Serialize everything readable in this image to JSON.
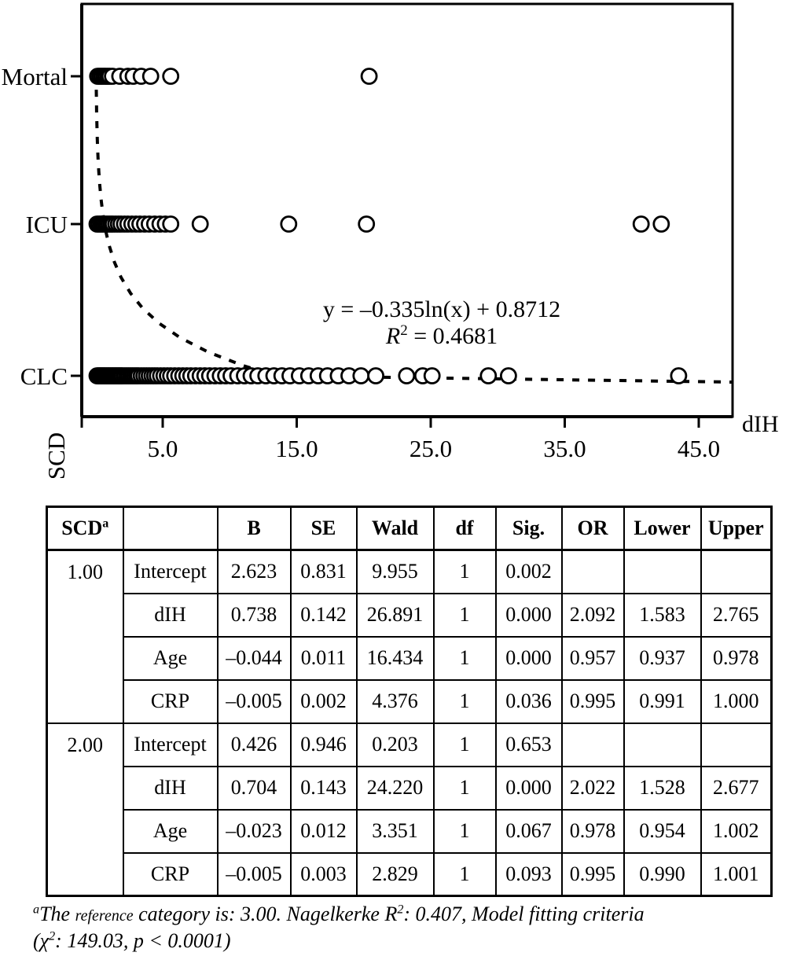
{
  "chart_data": {
    "type": "scatter",
    "title": "",
    "xlabel": "dIH",
    "yaxis_corner_label": "SCD",
    "categories": [
      "Mortal",
      "ICU",
      "CLC"
    ],
    "x_ticks": [
      5.0,
      15.0,
      25.0,
      35.0,
      45.0
    ],
    "x_tick_labels": [
      "5.0",
      "15.0",
      "25.0",
      "35.0",
      "45.0"
    ],
    "xlim": [
      -1.0,
      47.5
    ],
    "grid": false,
    "legend": "none",
    "marker": "open-circle",
    "marker_color": "#000000",
    "series": [
      {
        "name": "Mortal",
        "values": [
          0.15,
          0.3,
          0.45,
          0.6,
          0.75,
          0.9,
          1.05,
          1.25,
          1.8,
          2.4,
          2.8,
          3.4,
          4.1,
          5.6,
          20.4
        ]
      },
      {
        "name": "ICU",
        "values": [
          0.1,
          0.25,
          0.4,
          0.55,
          0.7,
          0.85,
          1.0,
          1.15,
          1.3,
          1.5,
          1.7,
          1.9,
          2.15,
          2.4,
          2.7,
          3.0,
          3.3,
          3.65,
          4.0,
          4.4,
          4.8,
          5.2,
          5.6,
          7.8,
          14.4,
          20.2,
          40.7,
          42.2
        ]
      },
      {
        "name": "CLC",
        "values": [
          0.1,
          0.2,
          0.3,
          0.4,
          0.5,
          0.6,
          0.7,
          0.8,
          0.9,
          1.0,
          1.1,
          1.2,
          1.3,
          1.4,
          1.5,
          1.6,
          1.7,
          1.8,
          1.9,
          2.0,
          2.15,
          2.3,
          2.45,
          2.6,
          2.75,
          2.9,
          3.05,
          3.2,
          3.4,
          3.6,
          3.8,
          4.0,
          4.2,
          4.4,
          4.6,
          4.85,
          5.1,
          5.35,
          5.6,
          5.9,
          6.2,
          6.5,
          6.8,
          7.1,
          7.45,
          7.8,
          8.15,
          8.5,
          8.9,
          9.3,
          9.7,
          10.1,
          10.6,
          11.1,
          11.6,
          12.1,
          12.7,
          13.3,
          13.9,
          14.5,
          15.2,
          15.9,
          16.6,
          17.3,
          18.1,
          18.9,
          19.8,
          20.9,
          23.2,
          24.4,
          25.1,
          29.3,
          30.8,
          43.5
        ]
      }
    ],
    "trendline": {
      "style": "dashed",
      "a": -0.335,
      "b": 0.8712,
      "equation_text": "y = –0.335ln(x) + 0.8712",
      "r2_prefix": "R",
      "r2_sup": "2",
      "r2_rest": " = 0.4681"
    }
  },
  "table": {
    "headers": [
      {
        "text": "SCD",
        "sup": "a"
      },
      {
        "text": ""
      },
      {
        "text": "B"
      },
      {
        "text": "SE"
      },
      {
        "text": "Wald"
      },
      {
        "text": "df"
      },
      {
        "text": "Sig."
      },
      {
        "text": "OR"
      },
      {
        "text": "Lower"
      },
      {
        "text": "Upper"
      }
    ],
    "groups": [
      {
        "scd": "1.00",
        "rows": [
          [
            "Intercept",
            "2.623",
            "0.831",
            "9.955",
            "1",
            "0.002",
            "",
            "",
            ""
          ],
          [
            "dIH",
            "0.738",
            "0.142",
            "26.891",
            "1",
            "0.000",
            "2.092",
            "1.583",
            "2.765"
          ],
          [
            "Age",
            "–0.044",
            "0.011",
            "16.434",
            "1",
            "0.000",
            "0.957",
            "0.937",
            "0.978"
          ],
          [
            "CRP",
            "–0.005",
            "0.002",
            "4.376",
            "1",
            "0.036",
            "0.995",
            "0.991",
            "1.000"
          ]
        ]
      },
      {
        "scd": "2.00",
        "rows": [
          [
            "Intercept",
            "0.426",
            "0.946",
            "0.203",
            "1",
            "0.653",
            "",
            "",
            ""
          ],
          [
            "dIH",
            "0.704",
            "0.143",
            "24.220",
            "1",
            "0.000",
            "2.022",
            "1.528",
            "2.677"
          ],
          [
            "Age",
            "–0.023",
            "0.012",
            "3.351",
            "1",
            "0.067",
            "0.978",
            "0.954",
            "1.002"
          ],
          [
            "CRP",
            "–0.005",
            "0.003",
            "2.829",
            "1",
            "0.093",
            "0.995",
            "0.990",
            "1.001"
          ]
        ]
      }
    ]
  },
  "footnote": {
    "marker": "a",
    "l1a": "The ",
    "l1small": "reference",
    "l1b": " category is: 3.00. Nagelkerke R",
    "l1sup": "2",
    "l1c": ": 0.407, Model fitting criteria",
    "l2a": "(χ",
    "l2sup": "2",
    "l2b": ": 149.03, p < 0.0001)"
  }
}
